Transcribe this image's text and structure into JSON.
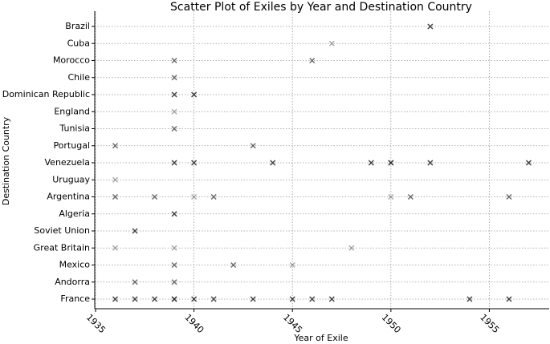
{
  "chart_data": {
    "type": "scatter",
    "title": "Scatter Plot of Exiles by Year and Destination Country",
    "x_label": "Year of Exile",
    "y_label": "Destination Country",
    "categories": [
      "Brazil",
      "Cuba",
      "Morocco",
      "Chile",
      "Dominican Republic",
      "England",
      "Tunisia",
      "Portugal",
      "Venezuela",
      "Uruguay",
      "Argentina",
      "Algeria",
      "Soviet Union",
      "Great Britain",
      "Mexico",
      "Andorra",
      "France"
    ],
    "xlim": [
      1935,
      1958
    ],
    "xticks": [
      1935,
      1940,
      1945,
      1950,
      1955
    ],
    "grid": true,
    "color": "#000000",
    "x": [
      1952,
      1952,
      1952,
      1947,
      1939,
      1939,
      1946,
      1946,
      1939,
      1939,
      1939,
      1939,
      1939,
      1940,
      1940,
      1940,
      1939,
      1939,
      1939,
      1936,
      1936,
      1943,
      1943,
      1939,
      1939,
      1939,
      1940,
      1940,
      1940,
      1944,
      1944,
      1944,
      1949,
      1949,
      1949,
      1950,
      1950,
      1950,
      1950,
      1952,
      1952,
      1952,
      1957,
      1957,
      1957,
      1936,
      1936,
      1936,
      1938,
      1938,
      1940,
      1941,
      1941,
      1950,
      1951,
      1951,
      1956,
      1956,
      1939,
      1939,
      1939,
      1937,
      1937,
      1937,
      1936,
      1939,
      1948,
      1939,
      1939,
      1942,
      1942,
      1945,
      1937,
      1937,
      1939,
      1939,
      1936,
      1936,
      1936,
      1937,
      1937,
      1937,
      1938,
      1938,
      1938,
      1939,
      1939,
      1939,
      1939,
      1940,
      1940,
      1940,
      1941,
      1941,
      1941,
      1943,
      1943,
      1943,
      1945,
      1945,
      1945,
      1946,
      1946,
      1946,
      1947,
      1947,
      1947,
      1954,
      1954,
      1954,
      1956,
      1956,
      1956
    ],
    "y": [
      "Brazil",
      "Brazil",
      "Brazil",
      "Cuba",
      "Morocco",
      "Morocco",
      "Morocco",
      "Morocco",
      "Chile",
      "Chile",
      "Dominican Republic",
      "Dominican Republic",
      "Dominican Republic",
      "Dominican Republic",
      "Dominican Republic",
      "Dominican Republic",
      "England",
      "Tunisia",
      "Tunisia",
      "Portugal",
      "Portugal",
      "Portugal",
      "Portugal",
      "Venezuela",
      "Venezuela",
      "Venezuela",
      "Venezuela",
      "Venezuela",
      "Venezuela",
      "Venezuela",
      "Venezuela",
      "Venezuela",
      "Venezuela",
      "Venezuela",
      "Venezuela",
      "Venezuela",
      "Venezuela",
      "Venezuela",
      "Venezuela",
      "Venezuela",
      "Venezuela",
      "Venezuela",
      "Venezuela",
      "Venezuela",
      "Venezuela",
      "Uruguay",
      "Argentina",
      "Argentina",
      "Argentina",
      "Argentina",
      "Argentina",
      "Argentina",
      "Argentina",
      "Argentina",
      "Argentina",
      "Argentina",
      "Argentina",
      "Argentina",
      "Algeria",
      "Algeria",
      "Algeria",
      "Soviet Union",
      "Soviet Union",
      "Soviet Union",
      "Great Britain",
      "Great Britain",
      "Great Britain",
      "Mexico",
      "Mexico",
      "Mexico",
      "Mexico",
      "Mexico",
      "Andorra",
      "Andorra",
      "Andorra",
      "Andorra",
      "France",
      "France",
      "France",
      "France",
      "France",
      "France",
      "France",
      "France",
      "France",
      "France",
      "France",
      "France",
      "France",
      "France",
      "France",
      "France",
      "France",
      "France",
      "France",
      "France",
      "France",
      "France",
      "France",
      "France",
      "France",
      "France",
      "France",
      "France",
      "France",
      "France",
      "France",
      "France",
      "France",
      "France",
      "France",
      "France",
      "France"
    ]
  }
}
